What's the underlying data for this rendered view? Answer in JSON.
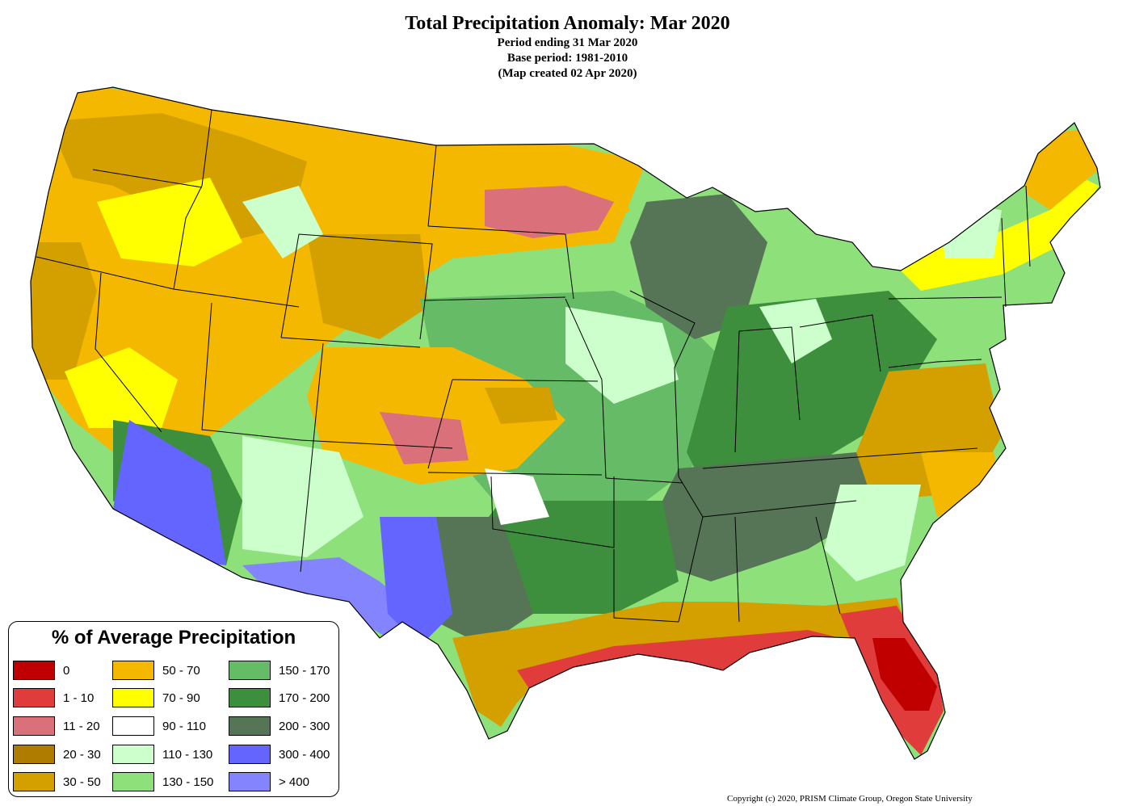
{
  "title": {
    "main": "Total Precipitation Anomaly: Mar 2020",
    "line1": "Period ending 31 Mar 2020",
    "line2": "Base period: 1981-2010",
    "line3": "(Map created 02 Apr 2020)"
  },
  "legend": {
    "title": "% of Average Precipitation",
    "items": [
      {
        "label": "0",
        "color": "#c00000"
      },
      {
        "label": "1 - 10",
        "color": "#e03c3c"
      },
      {
        "label": "11 - 20",
        "color": "#d9707a"
      },
      {
        "label": "20 - 30",
        "color": "#b07c00"
      },
      {
        "label": "30 - 50",
        "color": "#d4a000"
      },
      {
        "label": "50 - 70",
        "color": "#f5b800"
      },
      {
        "label": "70 - 90",
        "color": "#ffff00"
      },
      {
        "label": "90 - 110",
        "color": "#ffffff"
      },
      {
        "label": "110 - 130",
        "color": "#ccffcc"
      },
      {
        "label": "130 - 150",
        "color": "#8ee07a"
      },
      {
        "label": "150 - 170",
        "color": "#66bb66"
      },
      {
        "label": "170 - 200",
        "color": "#3d8f3d"
      },
      {
        "label": "200 - 300",
        "color": "#567556"
      },
      {
        "label": "300 - 400",
        "color": "#6464ff"
      },
      {
        "label": "> 400",
        "color": "#8484ff"
      }
    ]
  },
  "copyright": "Copyright (c) 2020, PRISM Climate Group, Oregon State University"
}
